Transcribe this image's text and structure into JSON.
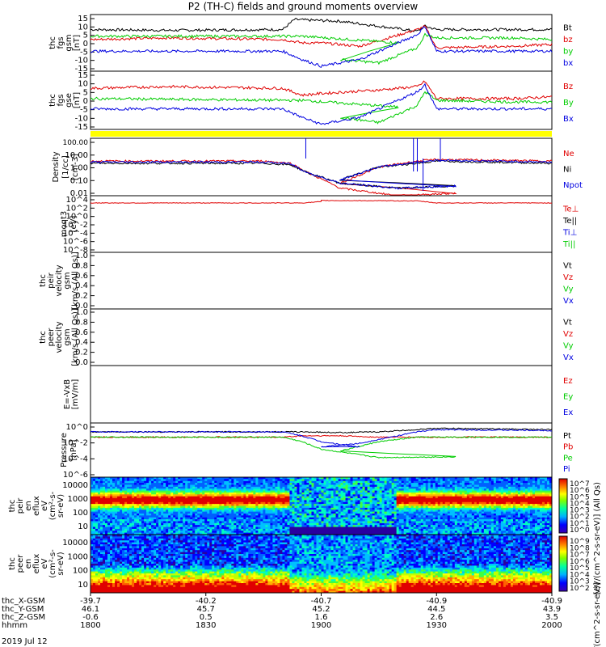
{
  "title": "P2 (TH-C) fields and ground moments overview",
  "date": "2019 Jul 12",
  "colors": {
    "black": "#000000",
    "red": "#e00000",
    "green": "#00cc00",
    "blue": "#0000e0",
    "yellow": "#ffff00"
  },
  "chart_data": [
    {
      "type": "line",
      "id": "fgs_gsm",
      "ylabel": [
        "thc",
        "fgs",
        "gsm",
        "[nT]"
      ],
      "yticks": [
        "15",
        "10",
        "5",
        "0",
        "-5",
        "-10",
        "-15"
      ],
      "ylim": [
        -17,
        17
      ],
      "series": [
        {
          "name": "Bt",
          "color": "black",
          "x": [
            1800,
            1820,
            1850,
            1853,
            1905,
            1915,
            1925,
            1927,
            1930,
            2000
          ],
          "y": [
            8,
            7.5,
            8,
            14,
            13,
            10,
            7,
            10,
            8,
            8
          ]
        },
        {
          "name": "bz",
          "color": "red",
          "x": [
            1800,
            1820,
            1850,
            1855,
            1900,
            1910,
            1925,
            1927,
            1930,
            1950,
            2000
          ],
          "y": [
            2,
            3,
            2,
            0,
            0,
            -2,
            8,
            10,
            -3,
            -2,
            -1
          ]
        },
        {
          "name": "by",
          "color": "green",
          "x": [
            1800,
            1850,
            1855,
            1880,
            1905,
            1915,
            1925,
            1927,
            1930,
            1950,
            2000
          ],
          "y": [
            4,
            4,
            4,
            0,
            -10,
            -12,
            -3,
            5,
            3,
            3,
            2
          ]
        },
        {
          "name": "bx",
          "color": "blue",
          "x": [
            1800,
            1850,
            1855,
            1900,
            1910,
            1925,
            1927,
            1930,
            2000
          ],
          "y": [
            -5,
            -5,
            -10,
            -14,
            -10,
            5,
            10,
            -5,
            -5
          ]
        }
      ]
    },
    {
      "type": "line",
      "id": "fgs_gse",
      "ylabel": [
        "thc",
        "fgs",
        "gse",
        "[nT]"
      ],
      "yticks": [
        "15",
        "10",
        "5",
        "0",
        "-5",
        "-10",
        "-15"
      ],
      "ylim": [
        -17,
        17
      ],
      "series": [
        {
          "name": "Bz",
          "color": "red",
          "x": [
            1800,
            1820,
            1850,
            1855,
            1900,
            1915,
            1925,
            1927,
            1930,
            1950,
            2000
          ],
          "y": [
            7,
            8,
            7,
            3,
            4,
            6,
            8,
            11,
            1,
            1,
            2
          ]
        },
        {
          "name": "By",
          "color": "green",
          "x": [
            1800,
            1850,
            1855,
            1880,
            1905,
            1915,
            1925,
            1927,
            1930,
            1950,
            2000
          ],
          "y": [
            1,
            0,
            0,
            -4,
            -10,
            -13,
            -3,
            5,
            0,
            -1,
            -1
          ]
        },
        {
          "name": "Bx",
          "color": "blue",
          "x": [
            1800,
            1850,
            1855,
            1900,
            1910,
            1925,
            1927,
            1930,
            2000
          ],
          "y": [
            -5,
            -5,
            -10,
            -14,
            -10,
            5,
            9,
            -5,
            -5
          ]
        }
      ]
    },
    {
      "type": "line",
      "id": "density",
      "scale": "log",
      "ylabel": [
        "Density",
        "[1/cc]",
        "[cm-3]"
      ],
      "yticks": [
        "100.00",
        "10.00",
        "1.00",
        "0.10",
        "0.01"
      ],
      "ylim": [
        0.005,
        200
      ],
      "series": [
        {
          "name": "Ne",
          "color": "red",
          "x": [
            1800,
            1845,
            1852,
            1857,
            1865,
            1880,
            1895,
            1905,
            1915,
            1925,
            1930,
            2000
          ],
          "y": [
            3,
            3,
            2,
            0.3,
            0.02,
            0.005,
            0.008,
            0.05,
            1,
            3,
            4,
            3
          ]
        },
        {
          "name": "Ni",
          "color": "black",
          "x": [
            1800,
            1845,
            1852,
            1857,
            1865,
            1880,
            1895,
            1905,
            1915,
            1925,
            1930,
            2000
          ],
          "y": [
            2,
            2,
            1.5,
            0.3,
            0.05,
            0.02,
            0.03,
            0.1,
            1,
            2,
            3,
            2
          ]
        },
        {
          "name": "Npot",
          "color": "blue",
          "x": [
            1800,
            1845,
            1852,
            1857,
            1865,
            1880,
            1895,
            1905,
            1915,
            1925,
            1930,
            2000
          ],
          "y": [
            2.5,
            2.5,
            1.8,
            0.3,
            0.05,
            0.02,
            0.03,
            0.1,
            1,
            2.5,
            3.5,
            2.5
          ]
        }
      ]
    },
    {
      "type": "line",
      "id": "moms3",
      "scale": "log",
      "ylabel": [
        "moqt3",
        "[eV]"
      ],
      "yticks": [
        "10^4",
        "10^2",
        "10^0",
        "10^-2",
        "10^-4",
        "10^-6",
        "10^-8"
      ],
      "legend": [
        "Te⊥",
        "Te||",
        "Ti⊥",
        "Ti||"
      ],
      "series": [
        {
          "name": "Te⊥",
          "color": "red",
          "x": [
            1800,
            1855,
            1860,
            1900,
            1925,
            1930,
            2000
          ],
          "y": [
            400,
            400,
            800,
            1500,
            1200,
            400,
            400
          ]
        }
      ]
    },
    {
      "type": "line",
      "id": "peir_velocity",
      "ylabel": [
        "thc",
        "peir",
        "velocity",
        "gsm",
        "[km/s (All Qs)]"
      ],
      "yticks": [
        "1.0",
        "0.8",
        "0.6",
        "0.4",
        "0.2",
        "0.0"
      ],
      "ylim": [
        0,
        1
      ],
      "legend": [
        "Vt",
        "Vz",
        "Vy",
        "Vx"
      ],
      "series": []
    },
    {
      "type": "line",
      "id": "peer_velocity",
      "ylabel": [
        "thc",
        "peer",
        "velocity",
        "gsm",
        "[km/s (All Qs)]"
      ],
      "yticks": [
        "1.0",
        "0.8",
        "0.6",
        "0.4",
        "0.2",
        "0.0"
      ],
      "ylim": [
        0,
        1
      ],
      "legend": [
        "Vt",
        "Vz",
        "Vy",
        "Vx"
      ],
      "series": []
    },
    {
      "type": "line",
      "id": "efield",
      "ylabel": [
        "E=-VxB",
        "[mV/m]"
      ],
      "legend": [
        "Ez",
        "Ey",
        "Ex"
      ],
      "series": []
    },
    {
      "type": "line",
      "id": "pressure",
      "scale": "log",
      "ylabel": [
        "Pressure",
        "[nPa]"
      ],
      "yticks": [
        "10^0",
        "10^-2",
        "10^-4",
        "10^-6"
      ],
      "series": [
        {
          "name": "Pt",
          "color": "black",
          "x": [
            1800,
            1850,
            1855,
            1905,
            1915,
            1925,
            1930,
            2000
          ],
          "y": [
            0.1,
            0.1,
            0.1,
            0.08,
            0.1,
            0.2,
            0.3,
            0.2
          ]
        },
        {
          "name": "Pb",
          "color": "red",
          "x": [
            1800,
            1850,
            1855,
            1905,
            1915,
            1925,
            1930,
            2000
          ],
          "y": [
            0.02,
            0.02,
            0.03,
            0.03,
            0.02,
            0.02,
            0.02,
            0.02
          ]
        },
        {
          "name": "Pe",
          "color": "green",
          "x": [
            1800,
            1850,
            1855,
            1860,
            1875,
            1895,
            1905,
            1915,
            1925,
            1930,
            2000
          ],
          "y": [
            0.02,
            0.02,
            0.005,
            0.0005,
            4e-05,
            5e-05,
            0.0003,
            0.005,
            0.02,
            0.02,
            0.02
          ]
        },
        {
          "name": "Pi",
          "color": "blue",
          "x": [
            1800,
            1850,
            1855,
            1860,
            1870,
            1900,
            1910,
            1915,
            1925,
            1930,
            2000
          ],
          "y": [
            0.1,
            0.1,
            0.03,
            0.005,
            0.001,
            0.001,
            0.003,
            0.01,
            0.1,
            0.2,
            0.15
          ]
        }
      ]
    },
    {
      "type": "heatmap",
      "id": "peir_eflux",
      "ylabel": [
        "thc",
        "peir",
        "en",
        "eflux",
        "eV",
        "(cm²-s-",
        "sr-eV)"
      ],
      "yticks": [
        "10000",
        "1000",
        "100",
        "10"
      ],
      "colorbar_ticks": [
        "10^7",
        "10^6",
        "10^5",
        "10^4",
        "10^3",
        "10^2",
        "10^1",
        "10^0"
      ],
      "colorbar_label": "[eV/(cm^2-s-sr-eV)] (All Qs)"
    },
    {
      "type": "heatmap",
      "id": "peer_eflux",
      "ylabel": [
        "thc",
        "peer",
        "en",
        "eflux",
        "eV",
        "(cm²-s-",
        "sr-eV)"
      ],
      "yticks": [
        "10000",
        "1000",
        "100",
        "10"
      ],
      "colorbar_ticks": [
        "10^9",
        "10^8",
        "10^7",
        "10^6",
        "10^5",
        "10^4",
        "10^3",
        "10^2"
      ],
      "colorbar_label": "[eV/(cm^2-s-sr-eV)]"
    }
  ],
  "footer": {
    "rows": [
      {
        "label": "thc_X-GSM",
        "values": [
          "-39.7",
          "-40.2",
          "-40.7",
          "-40.9",
          "-40.9"
        ]
      },
      {
        "label": "thc_Y-GSM",
        "values": [
          "46.1",
          "45.7",
          "45.2",
          "44.5",
          "43.9"
        ]
      },
      {
        "label": "thc_Z-GSM",
        "values": [
          "-0.6",
          "0.5",
          "1.6",
          "2.6",
          "3.5"
        ]
      },
      {
        "label": "hhmm",
        "values": [
          "1800",
          "1830",
          "1900",
          "1930",
          "2000"
        ]
      }
    ]
  },
  "legend_labels": {
    "p1": [
      "Bt",
      "bz",
      "by",
      "bx"
    ],
    "p2": [
      "Bz",
      "By",
      "Bx"
    ],
    "p3": [
      "Ne",
      "Ni",
      "Npot"
    ],
    "p4": [
      "Te⊥",
      "Te||",
      "Ti⊥",
      "Ti||"
    ],
    "p5": [
      "Vt",
      "Vz",
      "Vy",
      "Vx"
    ],
    "p6": [
      "Vt",
      "Vz",
      "Vy",
      "Vx"
    ],
    "p7": [
      "Ez",
      "Ey",
      "Ex"
    ],
    "p8": [
      "Pt",
      "Pb",
      "Pe",
      "Pi"
    ]
  }
}
